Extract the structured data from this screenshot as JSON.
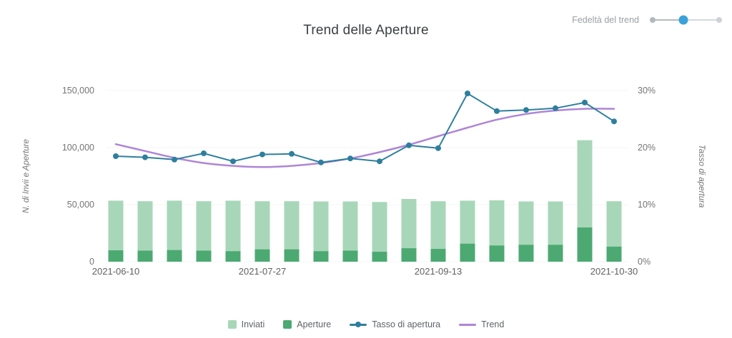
{
  "title": "Trend delle Aperture",
  "controls": {
    "trend_fidelity_label": "Fedeltà del trend",
    "slider": {
      "stops": 3,
      "selected_stop": 2,
      "active_color": "#3aa1da",
      "track_color": "#c8cbcf"
    }
  },
  "chart_data": {
    "type": "bar",
    "subtype": "combo-bars-with-rate-line-and-smoothed-trend",
    "title": "Trend delle Aperture",
    "x_count": 18,
    "x_tick_labels": [
      {
        "index": 0,
        "label": "2021-06-10"
      },
      {
        "index": 5,
        "label": "2021-07-27"
      },
      {
        "index": 11,
        "label": "2021-09-13"
      },
      {
        "index": 17,
        "label": "2021-10-30"
      }
    ],
    "left_axis": {
      "title": "N. di Invii e Aperture",
      "max": 150000,
      "ticks": [
        0,
        50000,
        100000,
        150000
      ],
      "tick_labels": [
        "0",
        "50,000",
        "100,000",
        "150,000"
      ]
    },
    "right_axis": {
      "title": "Tasso di apertura",
      "max": 30,
      "ticks": [
        0,
        10,
        20,
        30
      ],
      "tick_labels": [
        "0%",
        "10%",
        "20%",
        "30%"
      ]
    },
    "grid": "off",
    "legend_position": "bottom",
    "series": [
      {
        "name": "Inviati",
        "type": "bar",
        "axis": "left",
        "color": "#a7d7b8",
        "values": [
          53500,
          53000,
          53500,
          53000,
          53500,
          53000,
          53000,
          52800,
          52800,
          52300,
          55000,
          53000,
          53500,
          53800,
          52800,
          52800,
          106500,
          53000
        ]
      },
      {
        "name": "Aperture",
        "type": "bar",
        "axis": "left",
        "color": "#4ca972",
        "values": [
          10000,
          9700,
          10200,
          9700,
          9200,
          10800,
          10800,
          9200,
          9700,
          8700,
          11800,
          11200,
          15800,
          14200,
          14800,
          14800,
          30000,
          13200
        ]
      },
      {
        "name": "Tasso di apertura",
        "type": "line",
        "axis": "right",
        "color": "#2e7f9e",
        "values": [
          18.5,
          18.3,
          17.9,
          19.0,
          17.6,
          18.8,
          18.9,
          17.4,
          18.1,
          17.6,
          20.4,
          19.9,
          29.5,
          26.4,
          26.6,
          26.9,
          27.9,
          24.6
        ]
      },
      {
        "name": "Trend",
        "type": "smooth-line",
        "axis": "right",
        "color": "#ae85d6",
        "values": [
          20.6,
          19.4,
          18.2,
          17.3,
          16.8,
          16.6,
          16.8,
          17.3,
          18.1,
          19.2,
          20.5,
          22.0,
          23.5,
          24.9,
          25.9,
          26.5,
          26.8,
          26.8
        ]
      }
    ]
  }
}
